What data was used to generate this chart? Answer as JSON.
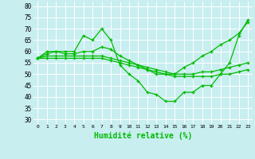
{
  "xlabel": "Humidité relative (%)",
  "xlim": [
    -0.5,
    23.5
  ],
  "ylim": [
    28,
    82
  ],
  "yticks": [
    30,
    35,
    40,
    45,
    50,
    55,
    60,
    65,
    70,
    75,
    80
  ],
  "xticks": [
    0,
    1,
    2,
    3,
    4,
    5,
    6,
    7,
    8,
    9,
    10,
    11,
    12,
    13,
    14,
    15,
    16,
    17,
    18,
    19,
    20,
    21,
    22,
    23
  ],
  "background_color": "#c8eef0",
  "grid_color": "#ffffff",
  "line_color": "#00bb00",
  "lines": [
    [
      57,
      60,
      60,
      60,
      60,
      67,
      65,
      70,
      65,
      54,
      50,
      47,
      42,
      41,
      38,
      38,
      42,
      42,
      45,
      45,
      50,
      55,
      67,
      74
    ],
    [
      57,
      59,
      60,
      59,
      59,
      60,
      60,
      62,
      61,
      58,
      56,
      54,
      52,
      50,
      50,
      50,
      53,
      55,
      58,
      60,
      63,
      65,
      68,
      73
    ],
    [
      57,
      58,
      58,
      58,
      58,
      58,
      58,
      58,
      57,
      56,
      55,
      54,
      53,
      52,
      51,
      50,
      50,
      50,
      51,
      51,
      52,
      53,
      54,
      55
    ],
    [
      57,
      57,
      57,
      57,
      57,
      57,
      57,
      57,
      56,
      55,
      54,
      53,
      52,
      51,
      50,
      49,
      49,
      49,
      49,
      49,
      50,
      50,
      51,
      52
    ]
  ]
}
